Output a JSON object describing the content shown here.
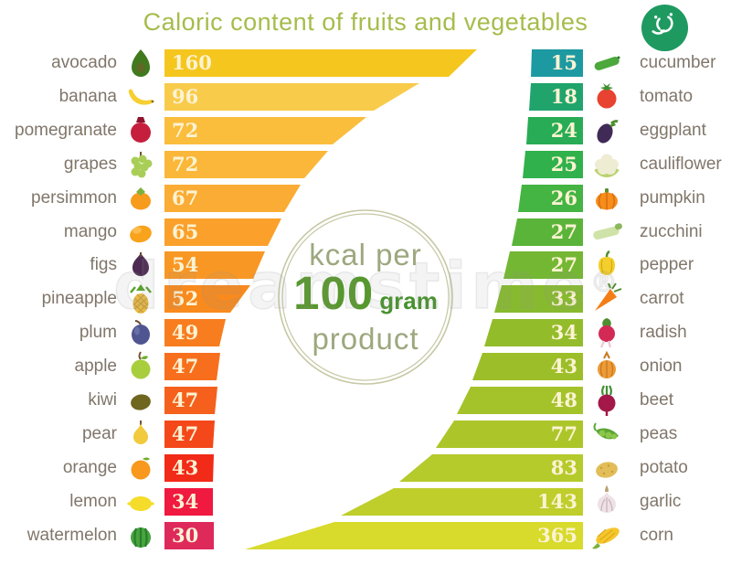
{
  "title": "Caloric content of fruits and vegetables",
  "title_color": "#a6bc4c",
  "logo": {
    "name": "dreamstime-green-logo",
    "color": "#1e9a60"
  },
  "center_badge": {
    "line1": "kcal per",
    "number": "100",
    "unit": "gram",
    "line2": "product"
  },
  "watermark": {
    "text": "dreamstime",
    "mark": "®"
  },
  "fruits": [
    {
      "label": "avocado",
      "value": "160",
      "color": "#F5C61E",
      "icon": "avocado-icon"
    },
    {
      "label": "banana",
      "value": "96",
      "color": "#F8CB4B",
      "icon": "banana-icon"
    },
    {
      "label": "pomegranate",
      "value": "72",
      "color": "#FABD3C",
      "icon": "pomegranate-icon"
    },
    {
      "label": "grapes",
      "value": "72",
      "color": "#FAB739",
      "icon": "grapes-icon"
    },
    {
      "label": "persimmon",
      "value": "67",
      "color": "#FAAC34",
      "icon": "persimmon-icon"
    },
    {
      "label": "mango",
      "value": "65",
      "color": "#FAA02B",
      "icon": "mango-icon"
    },
    {
      "label": "figs",
      "value": "54",
      "color": "#F99724",
      "icon": "figs-icon"
    },
    {
      "label": "pineapple",
      "value": "52",
      "color": "#F88A1E",
      "icon": "pineapple-icon"
    },
    {
      "label": "plum",
      "value": "49",
      "color": "#F87D1F",
      "icon": "plum-icon"
    },
    {
      "label": "apple",
      "value": "47",
      "color": "#F76F1D",
      "icon": "apple-icon"
    },
    {
      "label": "kiwi",
      "value": "47",
      "color": "#F5601C",
      "icon": "kiwi-icon"
    },
    {
      "label": "pear",
      "value": "47",
      "color": "#F4481A",
      "icon": "pear-icon"
    },
    {
      "label": "orange",
      "value": "43",
      "color": "#F22A18",
      "icon": "orange-icon"
    },
    {
      "label": "lemon",
      "value": "34",
      "color": "#F01940",
      "icon": "lemon-icon"
    },
    {
      "label": "watermelon",
      "value": "30",
      "color": "#DE2A5B",
      "icon": "watermelon-icon"
    }
  ],
  "vegetables": [
    {
      "label": "cucumber",
      "value": "15",
      "color": "#1D99A1",
      "icon": "cucumber-icon"
    },
    {
      "label": "tomato",
      "value": "18",
      "color": "#20A46C",
      "icon": "tomato-icon"
    },
    {
      "label": "eggplant",
      "value": "24",
      "color": "#28AC55",
      "icon": "eggplant-icon"
    },
    {
      "label": "cauliflower",
      "value": "25",
      "color": "#30B14B",
      "icon": "cauliflower-icon"
    },
    {
      "label": "pumpkin",
      "value": "26",
      "color": "#44B442",
      "icon": "pumpkin-icon"
    },
    {
      "label": "zucchini",
      "value": "27",
      "color": "#5BB43A",
      "icon": "zucchini-icon"
    },
    {
      "label": "pepper",
      "value": "27",
      "color": "#74B733",
      "icon": "pepper-icon"
    },
    {
      "label": "carrot",
      "value": "33",
      "color": "#87BA2E",
      "icon": "carrot-icon"
    },
    {
      "label": "radish",
      "value": "34",
      "color": "#93BC2B",
      "icon": "radish-icon"
    },
    {
      "label": "onion",
      "value": "43",
      "color": "#9CBF29",
      "icon": "onion-icon"
    },
    {
      "label": "beet",
      "value": "48",
      "color": "#A4C32A",
      "icon": "beet-icon"
    },
    {
      "label": "peas",
      "value": "77",
      "color": "#ACC62A",
      "icon": "peas-icon"
    },
    {
      "label": "potato",
      "value": "83",
      "color": "#B5CA2B",
      "icon": "potato-icon"
    },
    {
      "label": "garlic",
      "value": "143",
      "color": "#BFCE2B",
      "icon": "garlic-icon"
    },
    {
      "label": "corn",
      "value": "365",
      "color": "#D8DA2C",
      "icon": "corn-icon"
    }
  ],
  "chart_data": {
    "type": "bar",
    "title": "Caloric content of fruits and vegetables",
    "unit_note": "kcal per 100 gram product",
    "legend_position": "none",
    "grid": false,
    "series": [
      {
        "name": "fruits",
        "categories": [
          "avocado",
          "banana",
          "pomegranate",
          "grapes",
          "persimmon",
          "mango",
          "figs",
          "pineapple",
          "plum",
          "apple",
          "kiwi",
          "pear",
          "orange",
          "lemon",
          "watermelon"
        ],
        "values": [
          160,
          96,
          72,
          72,
          67,
          65,
          54,
          52,
          49,
          47,
          47,
          47,
          43,
          34,
          30
        ]
      },
      {
        "name": "vegetables",
        "categories": [
          "cucumber",
          "tomato",
          "eggplant",
          "cauliflower",
          "pumpkin",
          "zucchini",
          "pepper",
          "carrot",
          "radish",
          "onion",
          "beet",
          "peas",
          "potato",
          "garlic",
          "corn"
        ],
        "values": [
          15,
          18,
          24,
          25,
          26,
          27,
          27,
          33,
          34,
          43,
          48,
          77,
          83,
          143,
          365
        ]
      }
    ]
  }
}
